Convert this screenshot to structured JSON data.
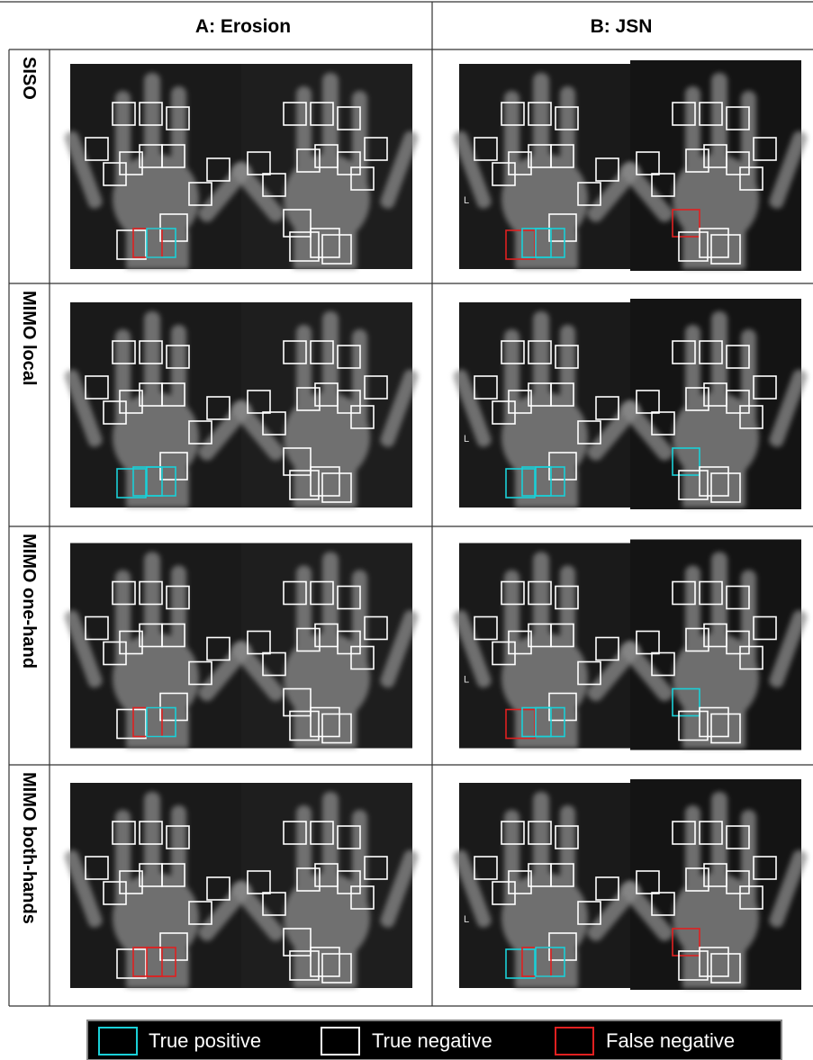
{
  "header": {
    "columns": [
      "A: Erosion",
      "B: JSN"
    ]
  },
  "rows": [
    "SISO",
    "MIMO local",
    "MIMO one-hand",
    "MIMO both-hands"
  ],
  "image_marker": "L",
  "legend": [
    "True positive",
    "True negative",
    "False negative"
  ]
}
